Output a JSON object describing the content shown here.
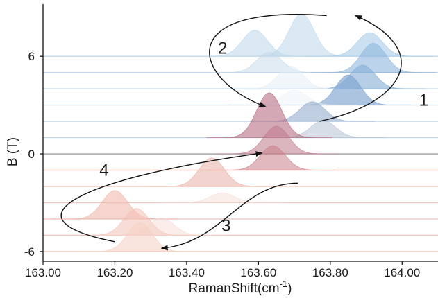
{
  "chart_data": {
    "type": "ridgeline",
    "xlabel": "RamanShift(cm",
    "xlabel_sup": "-1",
    "xlabel_tail": ")",
    "ylabel": "B (T)",
    "xlim": [
      163.0,
      164.1
    ],
    "ylim": [
      -6.6,
      9.2
    ],
    "x_ticks": [
      163.0,
      163.2,
      163.4,
      163.6,
      163.8,
      164.0
    ],
    "x_tick_labels": [
      "163.00",
      "163.20",
      "163.40",
      "163.60",
      "163.80",
      "164.00"
    ],
    "y_ticks": [
      -6,
      0,
      6
    ],
    "y_tick_labels": [
      "-6",
      "0",
      "6"
    ],
    "peak_sigma_cm1": 0.035,
    "baselines": [
      -6,
      -5,
      -4,
      -3,
      -2,
      -1,
      0,
      1,
      2,
      3,
      4,
      5,
      6
    ],
    "peaks": [
      {
        "B": 6,
        "center": 163.59,
        "height": 1.6,
        "color": "#bcd7ea",
        "opacity": 0.55
      },
      {
        "B": 6,
        "center": 163.72,
        "height": 2.6,
        "color": "#bcd7ea",
        "opacity": 0.55
      },
      {
        "B": 6,
        "center": 163.91,
        "height": 1.45,
        "color": "#a9cce6",
        "opacity": 0.6
      },
      {
        "B": 5,
        "center": 163.63,
        "height": 1.25,
        "color": "#c3daeb",
        "opacity": 0.5
      },
      {
        "B": 5,
        "center": 163.92,
        "height": 1.8,
        "color": "#8fb8de",
        "opacity": 0.6
      },
      {
        "B": 4,
        "center": 163.89,
        "height": 1.45,
        "color": "#86afd7",
        "opacity": 0.6
      },
      {
        "B": 4,
        "center": 163.69,
        "height": 1.4,
        "color": "#e4eef7",
        "opacity": 0.5
      },
      {
        "B": 3,
        "center": 163.85,
        "height": 1.85,
        "color": "#7fa4cf",
        "opacity": 0.65
      },
      {
        "B": 3,
        "center": 163.7,
        "height": 0.9,
        "color": "#e9f1f8",
        "opacity": 0.45
      },
      {
        "B": 2,
        "center": 163.75,
        "height": 1.2,
        "color": "#9db3cf",
        "opacity": 0.65
      },
      {
        "B": 1,
        "center": 163.78,
        "height": 1.05,
        "color": "#b7c3d6",
        "opacity": 0.55
      },
      {
        "B": 1,
        "center": 163.63,
        "height": 2.75,
        "color": "#b87083",
        "opacity": 0.6
      },
      {
        "B": 0,
        "center": 163.65,
        "height": 1.7,
        "color": "#c07a8a",
        "opacity": 0.55
      },
      {
        "B": -1,
        "center": 163.64,
        "height": 1.5,
        "color": "#c97f88",
        "opacity": 0.55
      },
      {
        "B": -2,
        "center": 163.47,
        "height": 1.75,
        "color": "#eaaea4",
        "opacity": 0.55
      },
      {
        "B": -3,
        "center": 163.5,
        "height": 0.6,
        "color": "#f6dcd5",
        "opacity": 0.45
      },
      {
        "B": -4,
        "center": 163.2,
        "height": 1.75,
        "color": "#f0b3a7",
        "opacity": 0.55
      },
      {
        "B": -5,
        "center": 163.26,
        "height": 1.65,
        "color": "#f3c1b5",
        "opacity": 0.55
      },
      {
        "B": -5,
        "center": 163.33,
        "height": 1.05,
        "color": "#f7d7cf",
        "opacity": 0.45
      },
      {
        "B": -6,
        "center": 163.27,
        "height": 1.75,
        "color": "#f5cfc3",
        "opacity": 0.55
      }
    ],
    "arrows": [
      {
        "label": "1",
        "label_at": [
          164.06,
          3.3
        ],
        "path": [
          [
            163.77,
            2.0
          ],
          [
            164.02,
            3.2
          ],
          [
            164.08,
            6.5
          ],
          [
            163.87,
            8.5
          ]
        ]
      },
      {
        "label": "2",
        "label_at": [
          163.5,
          6.5
        ],
        "path": [
          [
            163.79,
            8.5
          ],
          [
            163.35,
            9.2
          ],
          [
            163.42,
            4.5
          ],
          [
            163.62,
            2.9
          ]
        ]
      },
      {
        "label": "3",
        "label_at": [
          163.51,
          -4.4
        ],
        "path": [
          [
            163.71,
            -1.8
          ],
          [
            163.55,
            -1.8
          ],
          [
            163.5,
            -5.5
          ],
          [
            163.33,
            -5.8
          ]
        ]
      },
      {
        "label": "4",
        "label_at": [
          163.17,
          -1.0
        ],
        "path": [
          [
            163.2,
            -5.4
          ],
          [
            162.88,
            -4.0
          ],
          [
            163.1,
            -1.5
          ],
          [
            163.61,
            0.05
          ]
        ]
      }
    ]
  }
}
